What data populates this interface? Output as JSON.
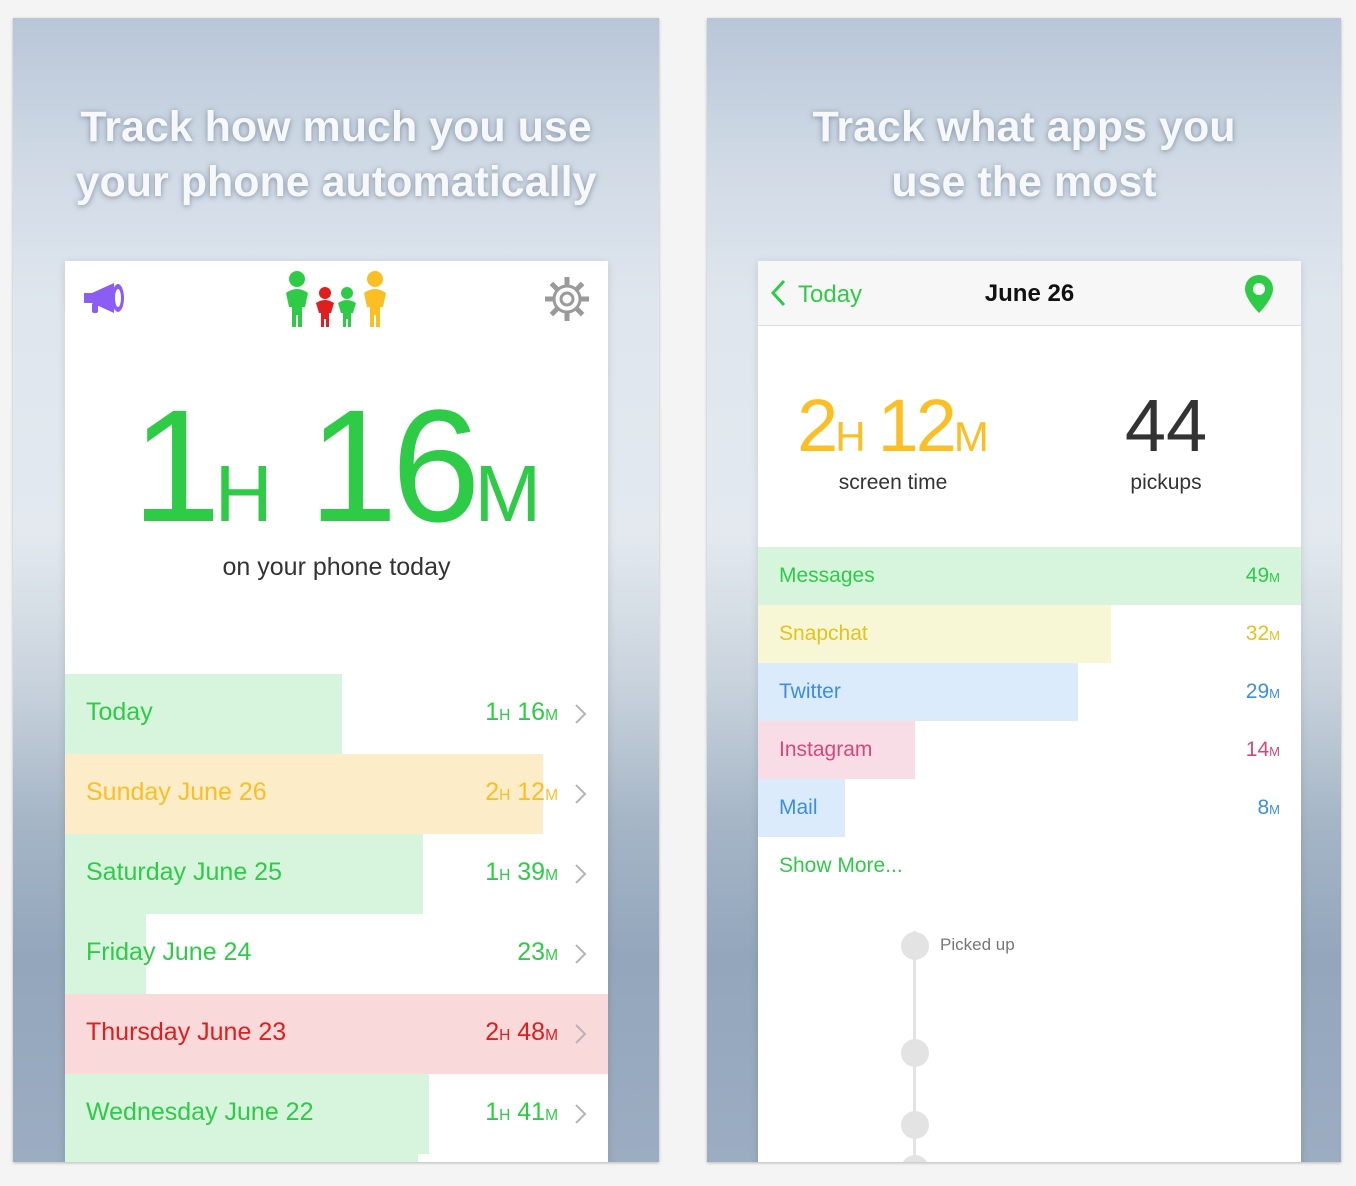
{
  "left": {
    "tagline_line1": "Track how much you use",
    "tagline_line2": "your phone automatically",
    "total": {
      "h": "1",
      "h_unit": "H",
      "m": "16",
      "m_unit": "M"
    },
    "subtitle": "on your phone today",
    "days": [
      {
        "label": "Today",
        "h": "1",
        "m": "16",
        "fill": 0.51,
        "color": "#2ecc46",
        "bg": "#d6f5dc"
      },
      {
        "label": "Sunday June 26",
        "h": "2",
        "m": "12",
        "fill": 0.88,
        "color": "#fbbf24",
        "bg": "#fdecc8"
      },
      {
        "label": "Saturday June 25",
        "h": "1",
        "m": "39",
        "fill": 0.66,
        "color": "#2ecc46",
        "bg": "#d6f5dc"
      },
      {
        "label": "Friday June 24",
        "h": "",
        "m": "23",
        "fill": 0.15,
        "color": "#2ecc46",
        "bg": "#d6f5dc"
      },
      {
        "label": "Thursday June 23",
        "h": "2",
        "m": "48",
        "fill": 1.0,
        "color": "#e11d1d",
        "bg": "#f9d9d9"
      },
      {
        "label": "Wednesday June 22",
        "h": "1",
        "m": "41",
        "fill": 0.67,
        "color": "#2ecc46",
        "bg": "#d6f5dc"
      },
      {
        "label": "",
        "h": "",
        "m": "",
        "fill": 0.65,
        "color": "#2ecc46",
        "bg": "#d6f5dc"
      }
    ]
  },
  "right": {
    "tagline_line1": "Track what apps you",
    "tagline_line2": "use the most",
    "nav": {
      "back_label": "Today",
      "title": "June 26"
    },
    "screen_time": {
      "h": "2",
      "h_unit": "H",
      "m": "12",
      "m_unit": "M",
      "label": "screen time"
    },
    "pickups": {
      "value": "44",
      "label": "pickups"
    },
    "apps": [
      {
        "name": "Messages",
        "value": "49",
        "unit": "M",
        "fill": 1.0,
        "color": "#2ecc46",
        "bg": "#d6f5dc"
      },
      {
        "name": "Snapchat",
        "value": "32",
        "unit": "M",
        "fill": 0.65,
        "color": "#e6c21a",
        "bg": "#f7f7d6"
      },
      {
        "name": "Twitter",
        "value": "29",
        "unit": "M",
        "fill": 0.59,
        "color": "#3b8fe0",
        "bg": "#dcebfb"
      },
      {
        "name": "Instagram",
        "value": "14",
        "unit": "M",
        "fill": 0.29,
        "color": "#d9467a",
        "bg": "#f9dde6"
      },
      {
        "name": "Mail",
        "value": "8",
        "unit": "M",
        "fill": 0.16,
        "color": "#3b8fe0",
        "bg": "#dcebfb"
      }
    ],
    "show_more": "Show More...",
    "timeline_label": "Picked up"
  },
  "colors": {
    "green": "#2ecc46",
    "orange": "#fbbf24",
    "red": "#e11d1d",
    "purple": "#8b5cf6",
    "gray": "#9a9a9a"
  },
  "icons": [
    "megaphone-icon",
    "family-icon",
    "gear-icon",
    "chevron-left-icon",
    "map-pin-icon",
    "chevron-right-icon"
  ]
}
